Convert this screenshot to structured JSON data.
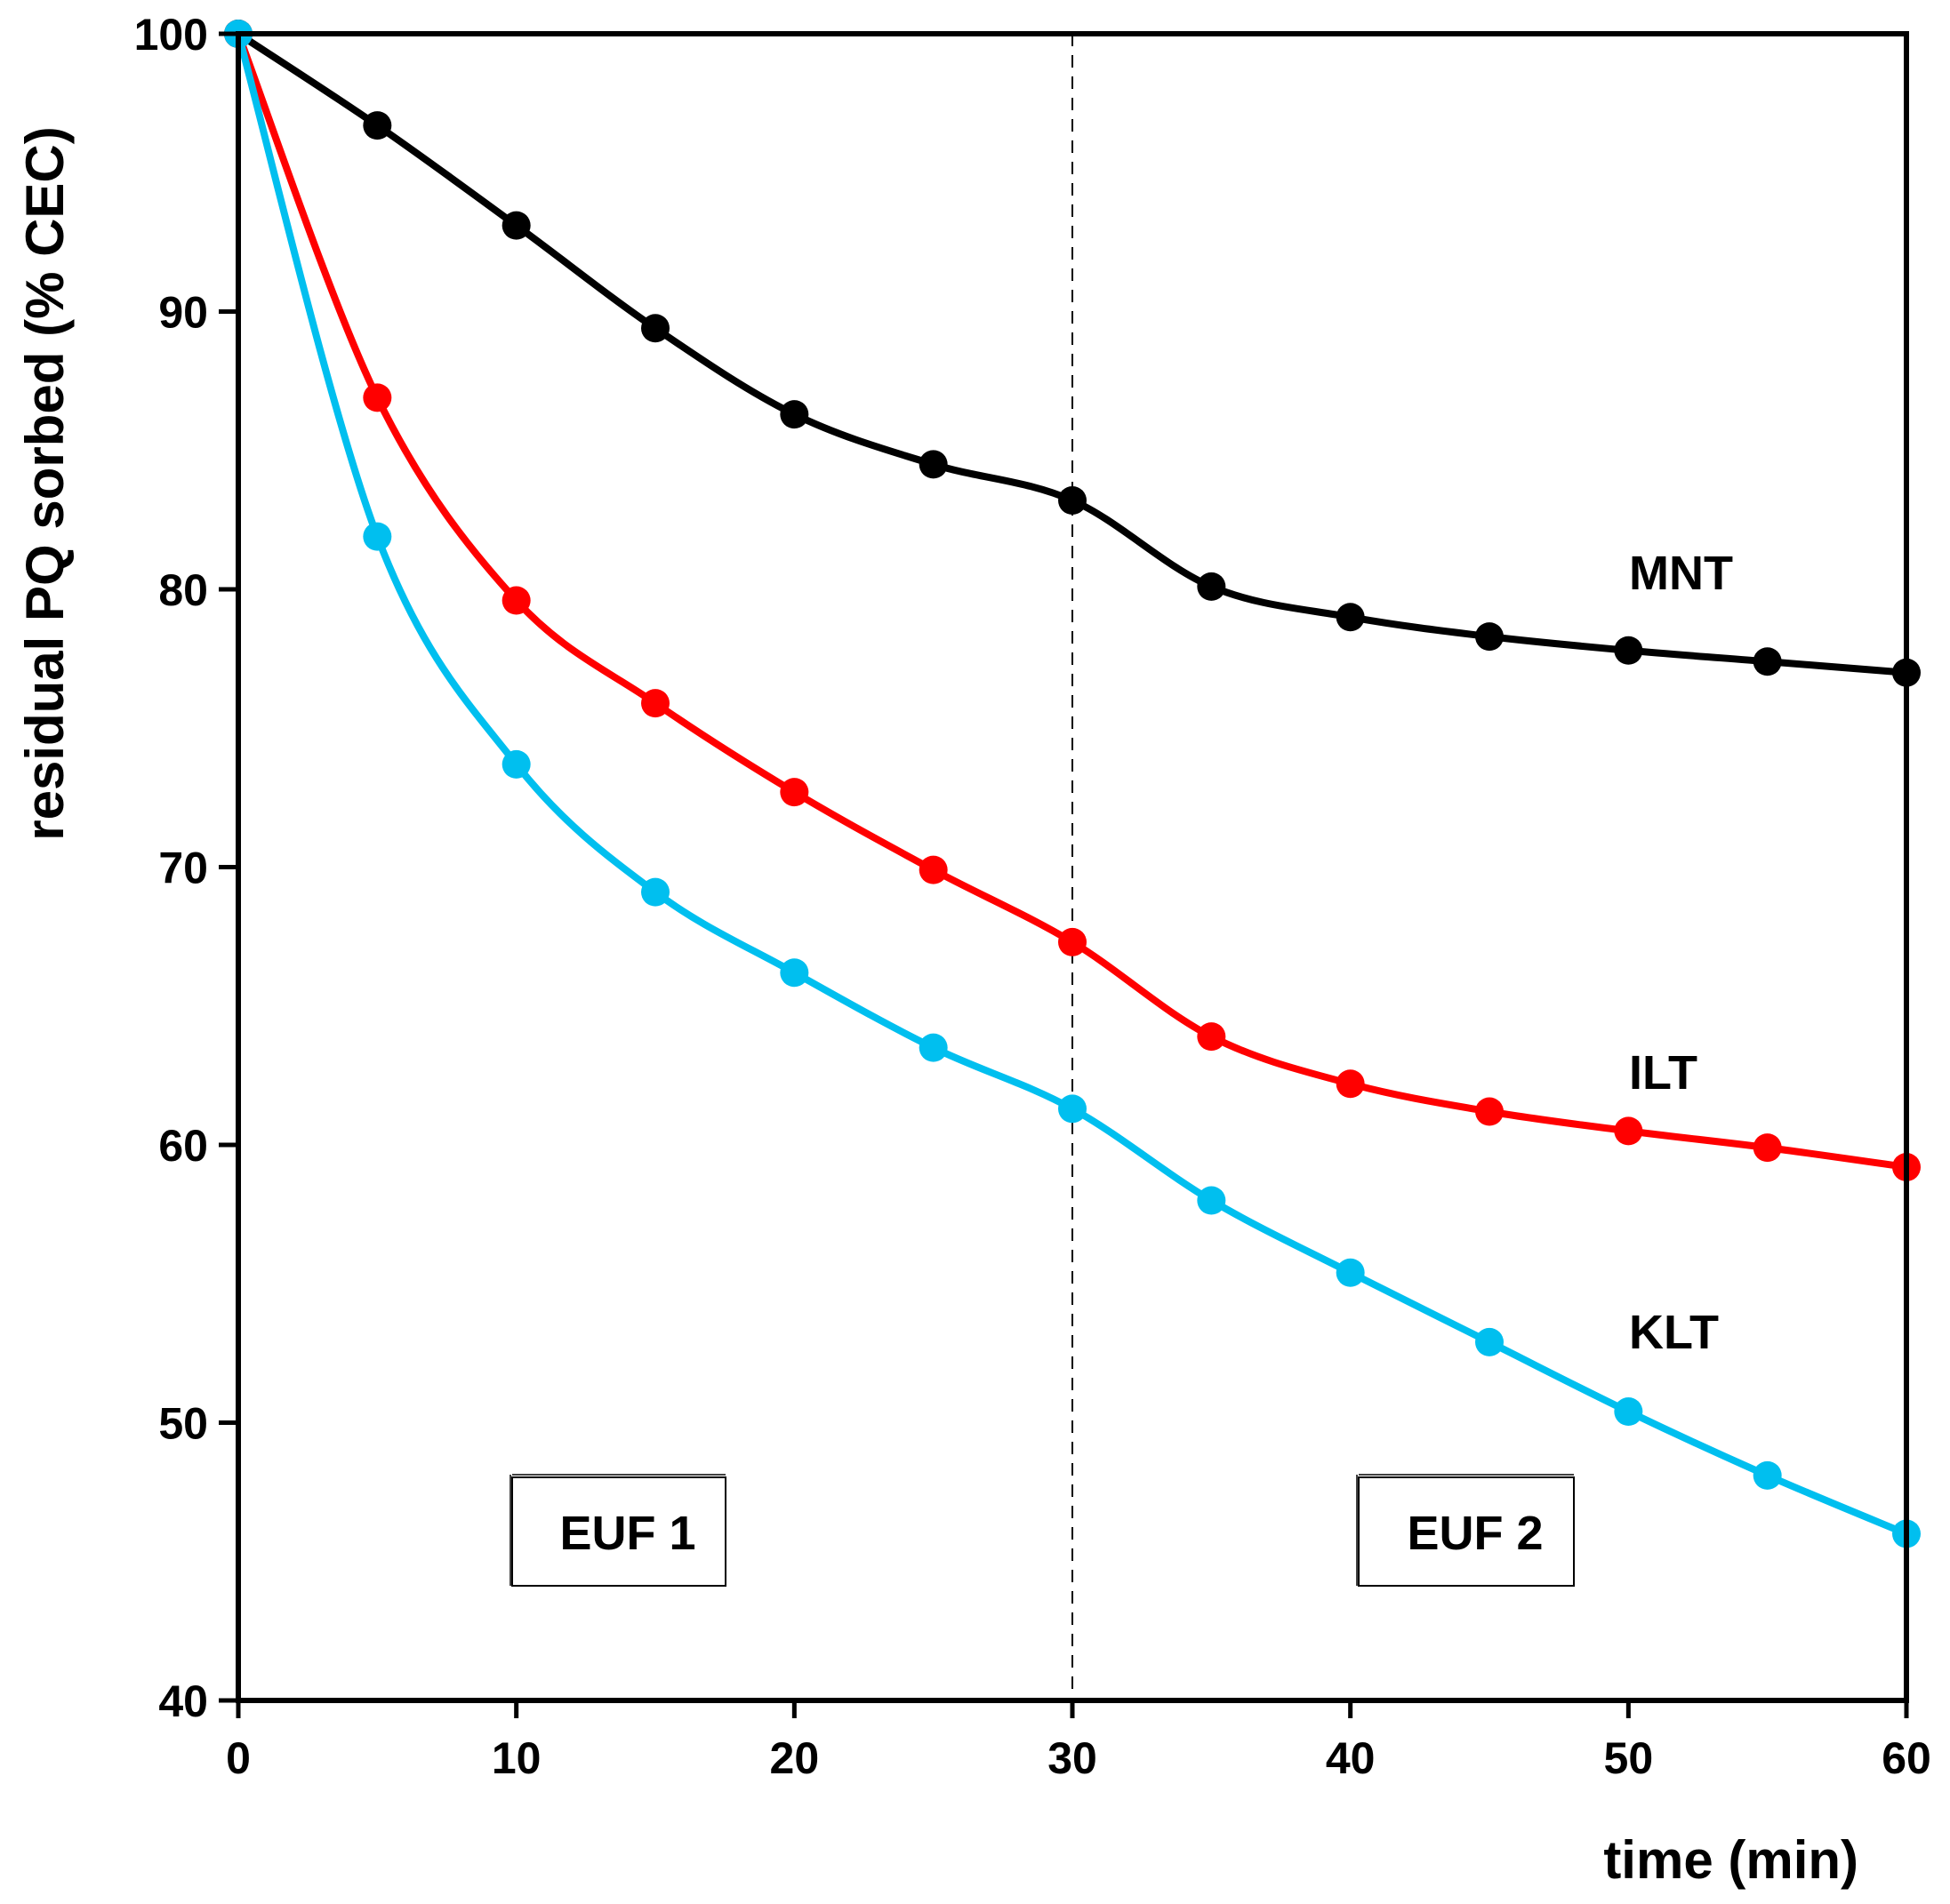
{
  "chart_data": {
    "type": "line",
    "title": "",
    "xlabel": "time (min)",
    "ylabel": "residual PQ sorbed (% CEC)",
    "xlim": [
      0,
      60
    ],
    "ylim": [
      40,
      100
    ],
    "xticks": [
      0,
      10,
      20,
      30,
      40,
      50,
      60
    ],
    "yticks": [
      40,
      50,
      60,
      70,
      80,
      90,
      100
    ],
    "x": [
      0,
      5,
      10,
      15,
      20,
      25,
      30,
      35,
      40,
      45,
      50,
      55,
      60
    ],
    "series": [
      {
        "name": "MNT",
        "color": "#000000",
        "values": [
          100,
          96.7,
          93.1,
          89.4,
          86.3,
          84.5,
          83.2,
          80.1,
          79.0,
          78.3,
          77.8,
          77.4,
          77.0
        ]
      },
      {
        "name": "ILT",
        "color": "#ff0000",
        "values": [
          100,
          86.9,
          79.6,
          75.9,
          72.7,
          69.9,
          67.3,
          63.9,
          62.2,
          61.2,
          60.5,
          59.9,
          59.2
        ]
      },
      {
        "name": "KLT",
        "color": "#00bfef",
        "values": [
          100,
          81.9,
          73.7,
          69.1,
          66.2,
          63.5,
          61.3,
          58.0,
          55.4,
          52.9,
          50.4,
          48.1,
          46.0
        ]
      }
    ],
    "vline": {
      "x": 30,
      "style": "dashed"
    },
    "annotations": [
      {
        "text": "EUF 1",
        "boxed": true
      },
      {
        "text": "EUF 2",
        "boxed": true
      }
    ],
    "legend": "inline labels at right end of each series",
    "grid": false
  }
}
